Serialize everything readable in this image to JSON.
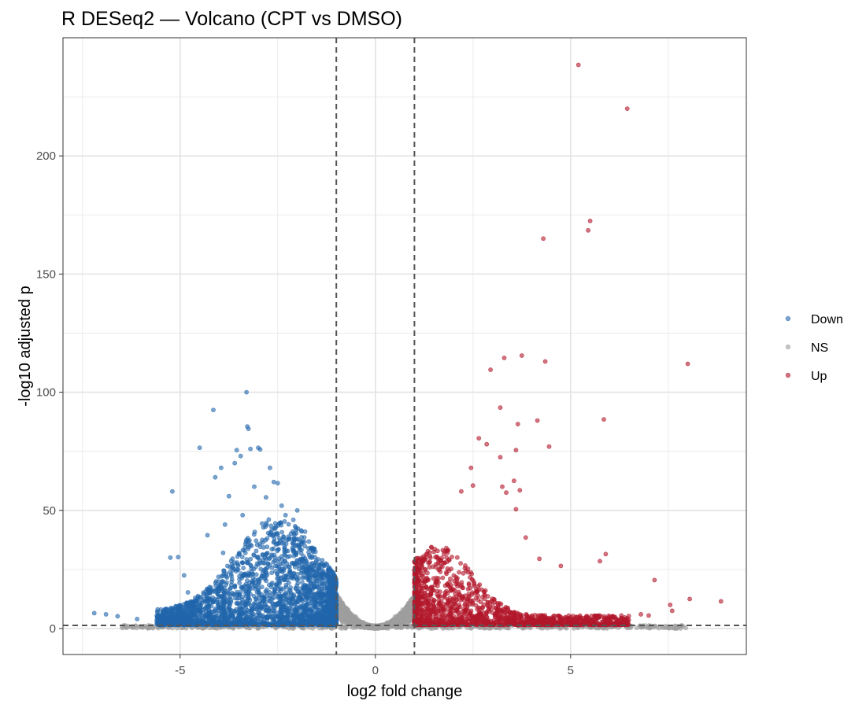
{
  "chart_data": {
    "type": "scatter",
    "title": "R DESeq2 — Volcano (CPT vs DMSO)",
    "xlabel": "log2 fold change",
    "ylabel": "-log10 adjusted p",
    "xlim": [
      -8,
      9.5
    ],
    "ylim": [
      -11,
      250
    ],
    "x_ticks": [
      -5,
      0,
      5
    ],
    "x_tick_labels": [
      "-5",
      "0",
      "5"
    ],
    "y_ticks": [
      0,
      50,
      100,
      150,
      200
    ],
    "y_tick_labels": [
      "0",
      "50",
      "100",
      "150",
      "200"
    ],
    "grid": true,
    "legend_position": "right",
    "thresholds": {
      "fold_change": [
        -1,
        1
      ],
      "padj_line": 1.3
    },
    "colors": {
      "Down": "#2166ac",
      "NS": "#9e9e9e",
      "Up": "#b2182b",
      "threshold_line": "#555555"
    },
    "series": [
      {
        "name": "Down",
        "points": [
          [
            -7.2,
            6.5
          ],
          [
            -6.9,
            6.0
          ],
          [
            -6.6,
            5.2
          ],
          [
            -6.1,
            4.0
          ],
          [
            -5.6,
            3.5
          ],
          [
            -5.4,
            2.8
          ],
          [
            -5.2,
            58.0
          ],
          [
            -5.25,
            30.0
          ],
          [
            -5.05,
            30.2
          ],
          [
            -4.9,
            22.5
          ],
          [
            -4.8,
            15.3
          ],
          [
            -4.5,
            76.5
          ],
          [
            -4.3,
            39.5
          ],
          [
            -4.15,
            92.5
          ],
          [
            -4.1,
            64.0
          ],
          [
            -3.95,
            68.0
          ],
          [
            -3.9,
            32.0
          ],
          [
            -3.85,
            44.0
          ],
          [
            -3.75,
            56.0
          ],
          [
            -3.6,
            70.0
          ],
          [
            -3.55,
            75.5
          ],
          [
            -3.45,
            73.0
          ],
          [
            -3.4,
            48.0
          ],
          [
            -3.3,
            100.0
          ],
          [
            -3.28,
            85.5
          ],
          [
            -3.25,
            84.5
          ],
          [
            -3.2,
            76.0
          ],
          [
            -3.1,
            60.0
          ],
          [
            -3.0,
            76.5
          ],
          [
            -2.95,
            75.8
          ],
          [
            -2.8,
            55.5
          ],
          [
            -2.7,
            68.0
          ],
          [
            -2.6,
            62.0
          ],
          [
            -2.5,
            61.5
          ],
          [
            -2.4,
            52.0
          ],
          [
            -2.3,
            48.0
          ],
          [
            -2.1,
            46.0
          ],
          [
            -2.0,
            50.0
          ],
          [
            -1.8,
            41.0
          ],
          [
            -1.6,
            33.0
          ],
          [
            -1.4,
            27.0
          ],
          [
            -1.2,
            20.0
          ],
          [
            -1.1,
            15.0
          ]
        ]
      },
      {
        "name": "NS",
        "points": [
          [
            -0.9,
            12.0
          ],
          [
            -0.7,
            8.0
          ],
          [
            -0.5,
            5.0
          ],
          [
            -0.3,
            2.5
          ],
          [
            0.0,
            0.5
          ],
          [
            0.3,
            2.5
          ],
          [
            0.5,
            5.0
          ],
          [
            0.7,
            8.0
          ],
          [
            0.9,
            12.0
          ],
          [
            1.5,
            1.0
          ],
          [
            2.5,
            1.0
          ],
          [
            -2.5,
            0.8
          ],
          [
            -3.5,
            0.6
          ]
        ]
      },
      {
        "name": "Up",
        "points": [
          [
            5.2,
            238.5
          ],
          [
            6.45,
            220.0
          ],
          [
            5.5,
            172.5
          ],
          [
            5.45,
            168.5
          ],
          [
            4.3,
            165.0
          ],
          [
            8.0,
            112.0
          ],
          [
            4.35,
            113.0
          ],
          [
            3.75,
            115.5
          ],
          [
            3.3,
            114.5
          ],
          [
            2.95,
            109.5
          ],
          [
            3.2,
            93.5
          ],
          [
            5.85,
            88.5
          ],
          [
            4.15,
            88.0
          ],
          [
            3.65,
            86.5
          ],
          [
            2.65,
            80.5
          ],
          [
            2.85,
            78.0
          ],
          [
            4.45,
            77.0
          ],
          [
            3.6,
            75.5
          ],
          [
            3.2,
            72.5
          ],
          [
            2.45,
            68.0
          ],
          [
            3.55,
            62.5
          ],
          [
            3.25,
            60.0
          ],
          [
            3.7,
            58.5
          ],
          [
            2.2,
            58.0
          ],
          [
            3.6,
            50.5
          ],
          [
            2.5,
            60.5
          ],
          [
            3.35,
            57.5
          ],
          [
            3.85,
            38.5
          ],
          [
            4.2,
            29.5
          ],
          [
            5.75,
            28.5
          ],
          [
            5.9,
            31.5
          ],
          [
            4.75,
            26.5
          ],
          [
            7.15,
            20.5
          ],
          [
            7.55,
            10.0
          ],
          [
            7.6,
            7.5
          ],
          [
            8.05,
            12.5
          ],
          [
            8.85,
            11.5
          ],
          [
            6.3,
            5.5
          ],
          [
            6.8,
            6.0
          ],
          [
            7.0,
            5.5
          ],
          [
            6.0,
            5.0
          ]
        ]
      }
    ]
  }
}
